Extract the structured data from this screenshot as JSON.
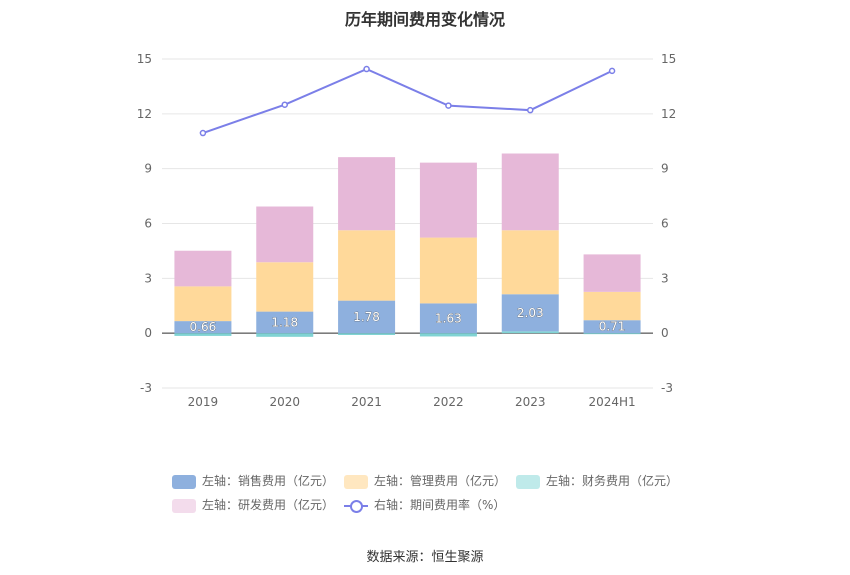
{
  "title": "历年期间费用变化情况",
  "source": "数据来源：恒生聚源",
  "colors": {
    "sales": "#8eb0de",
    "admin": "#ffd99a",
    "finance": "#7fd3d3",
    "rnd": "#e6b8d8",
    "rate": "#7b7fe8",
    "grid": "#e6e6e6",
    "axis_text": "#666666"
  },
  "legend": [
    {
      "key": "sales",
      "label": "左轴：销售费用（亿元）",
      "kind": "bar",
      "color": "#8eb0de"
    },
    {
      "key": "admin",
      "label": "左轴：管理费用（亿元）",
      "kind": "bar",
      "color": "#ffe7c0"
    },
    {
      "key": "finance",
      "label": "左轴：财务费用（亿元）",
      "kind": "bar",
      "color": "#bfeaea"
    },
    {
      "key": "rnd",
      "label": "左轴：研发费用（亿元）",
      "kind": "bar",
      "color": "#f3dcec"
    },
    {
      "key": "rate",
      "label": "右轴：期间费用率（%）",
      "kind": "line",
      "color": "#7b7fe8"
    }
  ],
  "chart_data": {
    "type": "bar",
    "stacked": true,
    "categories": [
      "2019",
      "2020",
      "2021",
      "2022",
      "2023",
      "2024H1"
    ],
    "series": [
      {
        "key": "sales",
        "name": "左轴：销售费用（亿元）",
        "axis": "left",
        "values": [
          0.66,
          1.18,
          1.78,
          1.63,
          2.03,
          0.71
        ],
        "labels": [
          "0.66",
          "1.18",
          "1.78",
          "1.63",
          "2.03",
          "0.71"
        ]
      },
      {
        "key": "admin",
        "name": "左轴：管理费用（亿元）",
        "axis": "left",
        "values": [
          1.9,
          2.7,
          3.85,
          3.6,
          3.5,
          1.55
        ]
      },
      {
        "key": "finance",
        "name": "左轴：财务费用（亿元）",
        "axis": "left",
        "values": [
          -0.15,
          -0.2,
          -0.1,
          -0.18,
          0.1,
          -0.05
        ]
      },
      {
        "key": "rnd",
        "name": "左轴：研发费用（亿元）",
        "axis": "left",
        "values": [
          1.95,
          3.05,
          4.0,
          4.1,
          4.2,
          2.05
        ]
      },
      {
        "key": "rate",
        "name": "右轴：期间费用率（%）",
        "axis": "right",
        "type": "line",
        "values": [
          10.95,
          12.5,
          14.45,
          12.45,
          12.2,
          14.35
        ]
      }
    ],
    "y_left": {
      "min": -3,
      "max": 15,
      "ticks": [
        -3,
        0,
        3,
        6,
        9,
        12,
        15
      ]
    },
    "y_right": {
      "min": -3,
      "max": 15,
      "ticks": [
        -3,
        0,
        3,
        6,
        9,
        12,
        15
      ]
    },
    "grid": true,
    "legend_position": "bottom"
  }
}
